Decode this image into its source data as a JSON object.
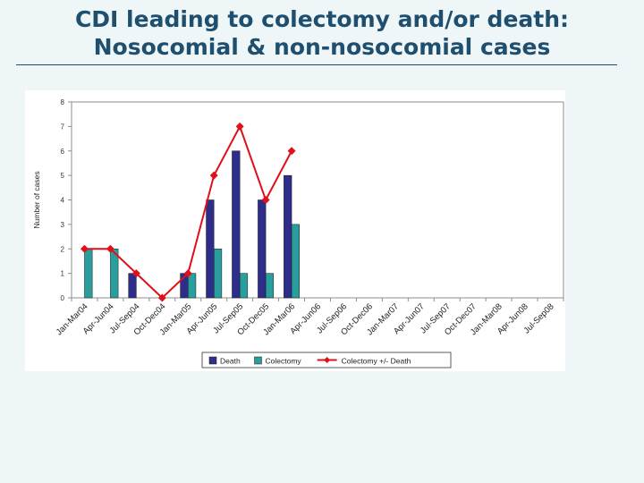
{
  "slide": {
    "title_line1": "CDI leading to colectomy and/or death:",
    "title_line2": "Nosocomial & non-nosocomial cases"
  },
  "chart_data": {
    "type": "bar",
    "ylabel": "Number of cases",
    "xlabel": "",
    "ylim": [
      0,
      8
    ],
    "yticks": [
      0,
      1,
      2,
      3,
      4,
      5,
      6,
      7,
      8
    ],
    "grid": false,
    "legend_position": "bottom",
    "categories": [
      "Jan-Mar04",
      "Apr-Jun04",
      "Jul-Sep04",
      "Oct-Dec04",
      "Jan-Mar05",
      "Apr-Jun05",
      "Jul-Sep05",
      "Oct-Dec05",
      "Jan-Mar06",
      "Apr-Jun06",
      "Jul-Sep06",
      "Oct-Dec06",
      "Jan-Mar07",
      "Apr-Jun07",
      "Jul-Sep07",
      "Oct-Dec07",
      "Jan-Mar08",
      "Apr-Jun08",
      "Jul-Sep08"
    ],
    "series": [
      {
        "name": "Death",
        "kind": "bar",
        "color": "#2e2e8a",
        "values": [
          0,
          0,
          1,
          0,
          1,
          4,
          6,
          4,
          5,
          null,
          null,
          null,
          null,
          null,
          null,
          null,
          null,
          null,
          null
        ]
      },
      {
        "name": "Colectomy",
        "kind": "bar",
        "color": "#2a9d9d",
        "values": [
          2,
          2,
          0,
          0,
          1,
          2,
          1,
          1,
          3,
          null,
          null,
          null,
          null,
          null,
          null,
          null,
          null,
          null,
          null
        ]
      },
      {
        "name": "Colectomy +/- Death",
        "kind": "line",
        "color": "#e0101a",
        "values": [
          2,
          2,
          1,
          0,
          1,
          5,
          7,
          4,
          6,
          null,
          null,
          null,
          null,
          null,
          null,
          null,
          null,
          null,
          null
        ]
      }
    ]
  }
}
